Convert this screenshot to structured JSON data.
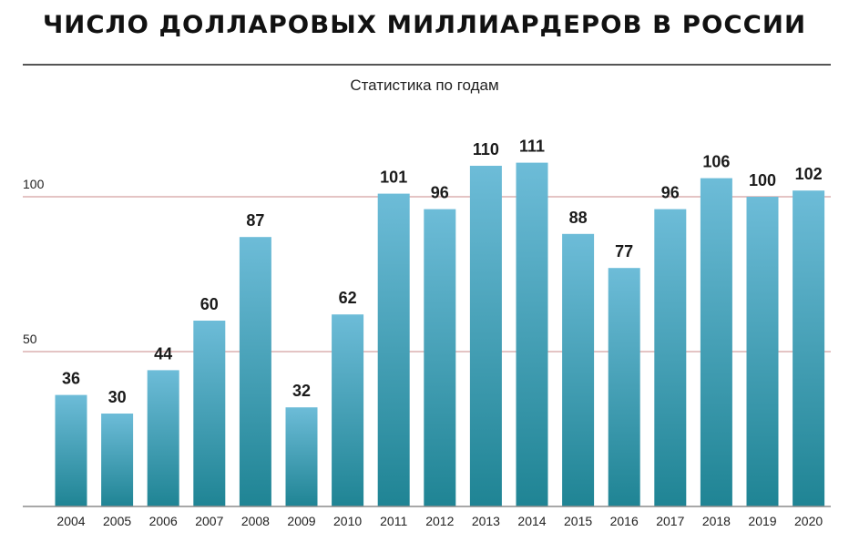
{
  "page": {
    "title": "ЧИСЛО ДОЛЛАРОВЫХ МИЛЛИАРДЕРОВ В РОССИИ"
  },
  "chart_data": {
    "type": "bar",
    "title": "ЧИСЛО ДОЛЛАРОВЫХ МИЛЛИАРДЕРОВ В РОССИИ",
    "subtitle": "Статистика по годам",
    "xlabel": "",
    "ylabel": "",
    "categories": [
      "2004",
      "2005",
      "2006",
      "2007",
      "2008",
      "2009",
      "2010",
      "2011",
      "2012",
      "2013",
      "2014",
      "2015",
      "2016",
      "2017",
      "2018",
      "2019",
      "2020"
    ],
    "values": [
      36,
      30,
      44,
      60,
      87,
      32,
      62,
      101,
      96,
      110,
      111,
      88,
      77,
      96,
      106,
      100,
      102
    ],
    "yticks": [
      50,
      100
    ],
    "ylim": [
      0,
      112
    ],
    "grid": true,
    "legend": "none",
    "colors": {
      "bar_top": "#6dbcd8",
      "bar_bottom": "#1f8494",
      "gridline": "#c98a8a",
      "baseline": "#8c8c8c"
    }
  }
}
